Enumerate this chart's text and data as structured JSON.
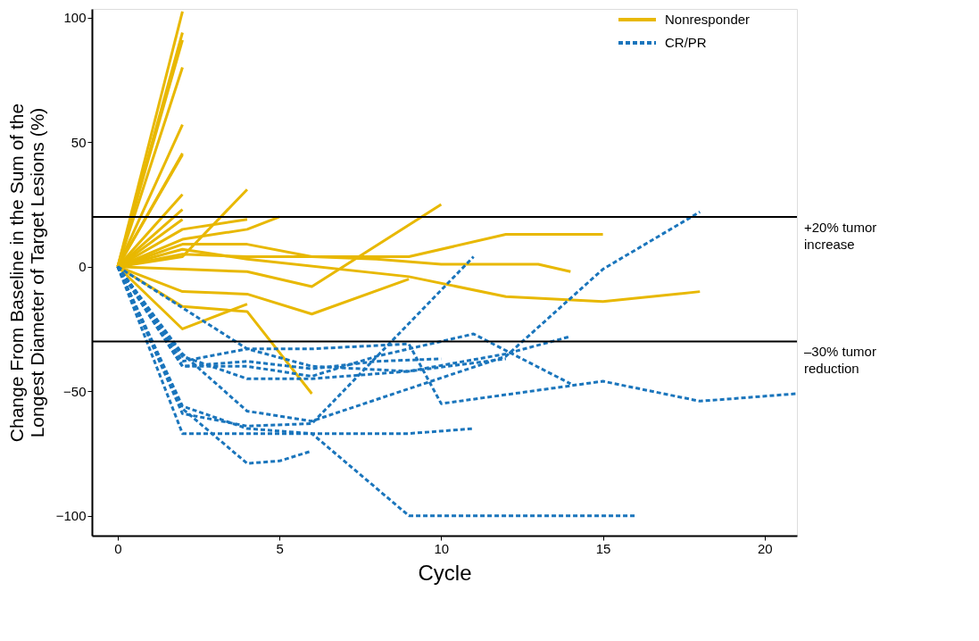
{
  "chart_data": {
    "type": "line",
    "xlabel": "Cycle",
    "ylabel": "Change From Baseline in the Sum of the Longest Diameter of Target Lesions (%)",
    "xlim": [
      -0.8,
      21
    ],
    "ylim": [
      -108,
      103.5
    ],
    "xticks": [
      0,
      5,
      10,
      15,
      20
    ],
    "yticks": [
      -100,
      -50,
      0,
      50,
      100
    ],
    "grid": false,
    "legend": "top right",
    "marker": "none",
    "ref_lines": [
      {
        "axis": "y",
        "value": 20,
        "label": "+20% tumor increase",
        "color": "#000000"
      },
      {
        "axis": "y",
        "value": -30,
        "label": "–30% tumor reduction",
        "color": "#000000"
      }
    ],
    "series": [
      {
        "name": "Nonresponder",
        "color": "#e8b800",
        "line_style": "solid",
        "x": [
          0,
          2
        ],
        "values": [
          0,
          102.5
        ]
      },
      {
        "color": "#e8b800",
        "line_style": "solid",
        "x": [
          0,
          2
        ],
        "values": [
          0,
          94
        ]
      },
      {
        "color": "#e8b800",
        "line_style": "solid",
        "x": [
          0,
          2
        ],
        "values": [
          0,
          91
        ]
      },
      {
        "color": "#e8b800",
        "line_style": "solid",
        "x": [
          0,
          2
        ],
        "values": [
          0,
          80
        ]
      },
      {
        "color": "#e8b800",
        "line_style": "solid",
        "x": [
          0,
          2
        ],
        "values": [
          0,
          57
        ]
      },
      {
        "color": "#e8b800",
        "line_style": "solid",
        "x": [
          0,
          2
        ],
        "values": [
          0,
          45
        ]
      },
      {
        "color": "#e8b800",
        "line_style": "solid",
        "x": [
          0,
          2
        ],
        "values": [
          0,
          45.5
        ]
      },
      {
        "color": "#e8b800",
        "line_style": "solid",
        "x": [
          0,
          2
        ],
        "values": [
          0,
          29
        ]
      },
      {
        "color": "#e8b800",
        "line_style": "solid",
        "x": [
          0,
          2
        ],
        "values": [
          0,
          23
        ]
      },
      {
        "color": "#e8b800",
        "line_style": "solid",
        "x": [
          0,
          2
        ],
        "values": [
          0,
          19
        ]
      },
      {
        "color": "#e8b800",
        "line_style": "solid",
        "x": [
          0,
          2,
          4
        ],
        "values": [
          0,
          4,
          31
        ]
      },
      {
        "color": "#e8b800",
        "line_style": "solid",
        "x": [
          0,
          2,
          4
        ],
        "values": [
          0,
          15,
          19
        ]
      },
      {
        "color": "#e8b800",
        "line_style": "solid",
        "x": [
          0,
          2,
          4,
          5
        ],
        "values": [
          0,
          11,
          15,
          20
        ]
      },
      {
        "color": "#e8b800",
        "line_style": "solid",
        "x": [
          0,
          2,
          4,
          6,
          9,
          12,
          15
        ],
        "values": [
          0,
          5,
          4,
          4,
          4,
          13,
          13
        ]
      },
      {
        "color": "#e8b800",
        "line_style": "solid",
        "x": [
          0,
          2,
          4,
          6,
          8,
          10,
          13,
          14
        ],
        "values": [
          0,
          9,
          9,
          4,
          3,
          1,
          1,
          -2
        ]
      },
      {
        "color": "#e8b800",
        "line_style": "solid",
        "x": [
          0,
          2,
          4,
          6,
          10
        ],
        "values": [
          0,
          -1,
          -2,
          -8,
          25
        ]
      },
      {
        "color": "#e8b800",
        "line_style": "solid",
        "x": [
          0,
          2,
          4,
          9,
          12,
          15,
          18
        ],
        "values": [
          0,
          7,
          3,
          -4,
          -12,
          -14,
          -10
        ]
      },
      {
        "color": "#e8b800",
        "line_style": "solid",
        "x": [
          0,
          2,
          4,
          6,
          9
        ],
        "values": [
          0,
          -10,
          -11,
          -19,
          -5
        ]
      },
      {
        "color": "#e8b800",
        "line_style": "solid",
        "x": [
          0,
          2,
          4,
          6
        ],
        "values": [
          0,
          -16,
          -18,
          -51
        ]
      },
      {
        "color": "#e8b800",
        "line_style": "solid",
        "x": [
          0,
          2,
          4
        ],
        "values": [
          0,
          -25,
          -15
        ]
      },
      {
        "name": "CR/PR",
        "color": "#1a75bc",
        "line_style": "dashed",
        "x": [
          0,
          2,
          6,
          9,
          11
        ],
        "values": [
          0,
          -67,
          -67,
          -67,
          -65
        ]
      },
      {
        "color": "#1a75bc",
        "line_style": "dashed",
        "x": [
          0,
          2,
          4,
          6,
          11
        ],
        "values": [
          0,
          -59,
          -64,
          -63,
          4
        ]
      },
      {
        "color": "#1a75bc",
        "line_style": "dashed",
        "x": [
          0,
          2,
          4,
          6,
          9,
          16
        ],
        "values": [
          0,
          -56,
          -65,
          -67,
          -100,
          -100
        ]
      },
      {
        "color": "#1a75bc",
        "line_style": "dashed",
        "x": [
          0,
          2,
          4,
          5,
          6
        ],
        "values": [
          0,
          -57,
          -79,
          -78,
          -74
        ]
      },
      {
        "color": "#1a75bc",
        "line_style": "dashed",
        "x": [
          0,
          2,
          4,
          6,
          12,
          15,
          18
        ],
        "values": [
          0,
          -35,
          -58,
          -62,
          -36,
          -1,
          22
        ]
      },
      {
        "color": "#1a75bc",
        "line_style": "dashed",
        "x": [
          0,
          2,
          4,
          6,
          9,
          10,
          15,
          18,
          21
        ],
        "values": [
          0,
          -38,
          -33,
          -33,
          -31,
          -55,
          -46,
          -54,
          -51
        ]
      },
      {
        "color": "#1a75bc",
        "line_style": "dashed",
        "x": [
          0,
          2,
          4,
          6,
          8,
          11,
          14
        ],
        "values": [
          0,
          -40,
          -40,
          -44,
          -36,
          -27,
          -47
        ]
      },
      {
        "color": "#1a75bc",
        "line_style": "dashed",
        "x": [
          0,
          2,
          4,
          6,
          9,
          12,
          14
        ],
        "values": [
          0,
          -36,
          -45,
          -45,
          -42,
          -35,
          -28
        ]
      },
      {
        "color": "#1a75bc",
        "line_style": "dashed",
        "x": [
          0,
          2,
          4,
          6,
          8,
          10
        ],
        "values": [
          0,
          -40,
          -38,
          -41,
          -38,
          -37
        ]
      },
      {
        "color": "#1a75bc",
        "line_style": "dashed",
        "x": [
          0,
          4,
          6,
          9,
          12
        ],
        "values": [
          0,
          -33,
          -40,
          -42,
          -37
        ]
      }
    ]
  }
}
